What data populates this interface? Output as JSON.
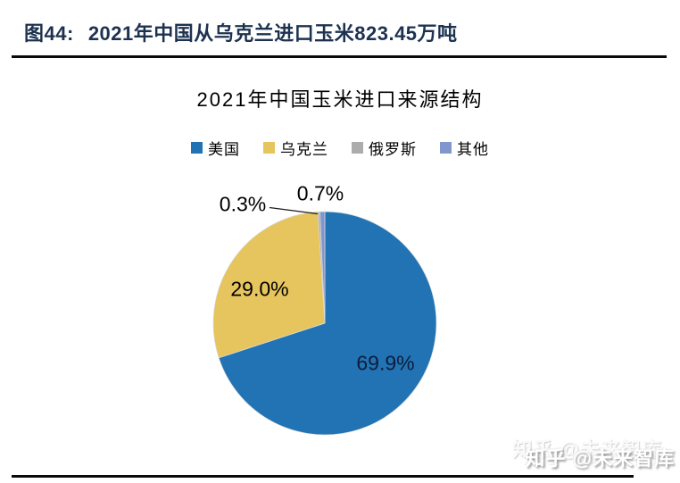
{
  "page": {
    "figure_label": "图44:",
    "figure_title": "2021年中国从乌克兰进口玉米823.45万吨",
    "watermark": "知乎 @未来智库"
  },
  "chart_data": {
    "type": "pie",
    "title": "2021年中国玉米进口来源结构",
    "legend_position": "top",
    "start_angle_deg": 0,
    "direction": "clockwise",
    "slices": [
      {
        "id": "usa",
        "name": "美国",
        "value": 69.9,
        "label": "69.9%",
        "color": "#2173B3"
      },
      {
        "id": "ukraine",
        "name": "乌克兰",
        "value": 29.0,
        "label": "29.0%",
        "color": "#E6C55E"
      },
      {
        "id": "russia",
        "name": "俄罗斯",
        "value": 0.3,
        "label": "0.3%",
        "color": "#ACACAC"
      },
      {
        "id": "other",
        "name": "其他",
        "value": 0.7,
        "label": "0.7%",
        "color": "#8097CD"
      }
    ]
  }
}
